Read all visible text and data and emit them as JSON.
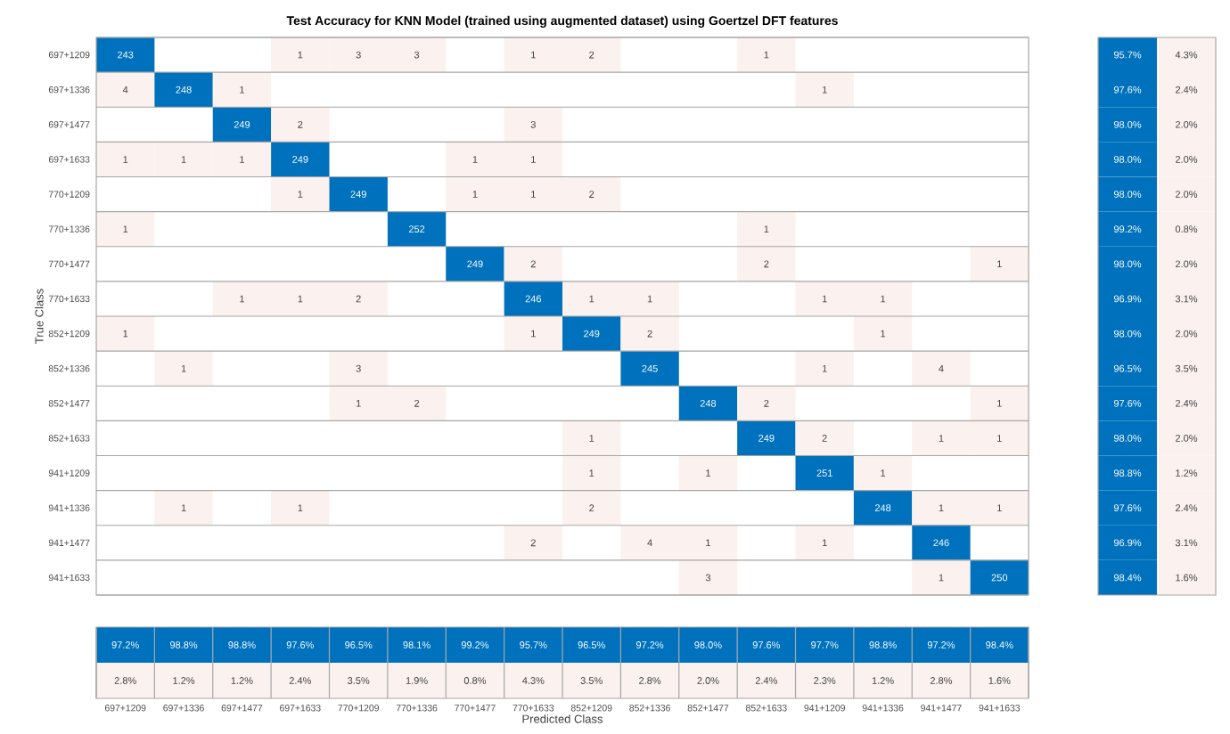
{
  "chart_data": [
    {
      "type": "heatmap",
      "title": "Test Accuracy for KNN Model (trained using augmented dataset) using Goertzel DFT features",
      "ylabel": "True Class",
      "tick_labels": "y",
      "data_labels": true,
      "categories": [
        null,
        null,
        null,
        null,
        null,
        null,
        null,
        null,
        null,
        null,
        null,
        null,
        null,
        null,
        null,
        null
      ],
      "y_categories": [
        "697+1209",
        "697+1336",
        "697+1477",
        "697+1633",
        "770+1209",
        "770+1336",
        "770+1477",
        "770+1633",
        "852+1209",
        "852+1336",
        "852+1477",
        "852+1633",
        "941+1209",
        "941+1336",
        "941+1477",
        "941+1633"
      ],
      "cells": [
        [
          243,
          null,
          null,
          1,
          3,
          3,
          null,
          1,
          2,
          null,
          null,
          1,
          null,
          null,
          null,
          null
        ],
        [
          4,
          248,
          1,
          null,
          null,
          null,
          null,
          null,
          null,
          null,
          null,
          null,
          1,
          null,
          null,
          null
        ],
        [
          null,
          null,
          249,
          2,
          null,
          null,
          null,
          3,
          null,
          null,
          null,
          null,
          null,
          null,
          null,
          null
        ],
        [
          1,
          1,
          1,
          249,
          null,
          null,
          1,
          1,
          null,
          null,
          null,
          null,
          null,
          null,
          null,
          null
        ],
        [
          null,
          null,
          null,
          1,
          249,
          null,
          1,
          1,
          2,
          null,
          null,
          null,
          null,
          null,
          null,
          null
        ],
        [
          1,
          null,
          null,
          null,
          null,
          252,
          null,
          null,
          null,
          null,
          null,
          1,
          null,
          null,
          null,
          null
        ],
        [
          null,
          null,
          null,
          null,
          null,
          null,
          249,
          2,
          null,
          null,
          null,
          2,
          null,
          null,
          null,
          1
        ],
        [
          null,
          null,
          1,
          1,
          2,
          null,
          null,
          246,
          1,
          1,
          null,
          null,
          1,
          1,
          null,
          null
        ],
        [
          1,
          null,
          null,
          null,
          null,
          null,
          null,
          1,
          249,
          2,
          null,
          null,
          null,
          1,
          null,
          null
        ],
        [
          null,
          1,
          null,
          null,
          3,
          null,
          null,
          null,
          null,
          245,
          null,
          null,
          1,
          null,
          4,
          null
        ],
        [
          null,
          null,
          null,
          null,
          1,
          2,
          null,
          null,
          null,
          null,
          248,
          2,
          null,
          null,
          null,
          1
        ],
        [
          null,
          null,
          null,
          null,
          null,
          null,
          null,
          null,
          1,
          null,
          null,
          249,
          2,
          null,
          1,
          1
        ],
        [
          null,
          null,
          null,
          null,
          null,
          null,
          null,
          null,
          1,
          null,
          1,
          null,
          251,
          1,
          null,
          null
        ],
        [
          null,
          1,
          null,
          1,
          null,
          null,
          null,
          null,
          2,
          null,
          null,
          null,
          null,
          248,
          1,
          1
        ],
        [
          null,
          null,
          null,
          null,
          null,
          null,
          null,
          2,
          null,
          4,
          1,
          null,
          1,
          null,
          246,
          null
        ],
        [
          null,
          null,
          null,
          null,
          null,
          null,
          null,
          null,
          null,
          null,
          3,
          null,
          null,
          null,
          1,
          250
        ]
      ]
    },
    {
      "type": "heatmap",
      "tick_labels": false,
      "categories": [
        null,
        null
      ],
      "y_categories": [
        null,
        null,
        null,
        null,
        null,
        null,
        null,
        null,
        null,
        null,
        null,
        null,
        null,
        null,
        null,
        null
      ],
      "cells": [
        [
          95.7,
          4.3
        ],
        [
          97.6,
          2.4
        ],
        [
          98.0,
          2.0
        ],
        [
          98.0,
          2.0
        ],
        [
          98.0,
          2.0
        ],
        [
          99.2,
          0.8
        ],
        [
          98.0,
          2.0
        ],
        [
          96.9,
          3.1
        ],
        [
          98.0,
          2.0
        ],
        [
          96.5,
          3.5
        ],
        [
          97.6,
          2.4
        ],
        [
          98.0,
          2.0
        ],
        [
          98.8,
          1.2
        ],
        [
          97.6,
          2.4
        ],
        [
          96.9,
          3.1
        ],
        [
          98.4,
          1.6
        ]
      ],
      "cell_labels": [
        [
          "95.7%",
          "4.3%"
        ],
        [
          "97.6%",
          "2.4%"
        ],
        [
          "98.0%",
          "2.0%"
        ],
        [
          "98.0%",
          "2.0%"
        ],
        [
          "98.0%",
          "2.0%"
        ],
        [
          "99.2%",
          "0.8%"
        ],
        [
          "98.0%",
          "2.0%"
        ],
        [
          "96.9%",
          "3.1%"
        ],
        [
          "98.0%",
          "2.0%"
        ],
        [
          "96.5%",
          "3.5%"
        ],
        [
          "97.6%",
          "2.4%"
        ],
        [
          "98.0%",
          "2.0%"
        ],
        [
          "98.8%",
          "1.2%"
        ],
        [
          "97.6%",
          "2.4%"
        ],
        [
          "96.9%",
          "3.1%"
        ],
        [
          "98.4%",
          "1.6%"
        ]
      ]
    },
    {
      "type": "heatmap",
      "xlabel": "Predicted Class",
      "tick_labels": "x",
      "categories": [
        "697+1209",
        "697+1336",
        "697+1477",
        "697+1633",
        "770+1209",
        "770+1336",
        "770+1477",
        "770+1633",
        "852+1209",
        "852+1336",
        "852+1477",
        "852+1633",
        "941+1209",
        "941+1336",
        "941+1477",
        "941+1633"
      ],
      "y_categories": [
        null,
        null
      ],
      "cells": [
        [
          97.2,
          98.8,
          98.8,
          97.6,
          96.5,
          98.1,
          99.2,
          95.7,
          96.5,
          97.2,
          98.0,
          97.6,
          97.7,
          98.8,
          97.2,
          98.4
        ],
        [
          2.8,
          1.2,
          1.2,
          2.4,
          3.5,
          1.9,
          0.8,
          4.3,
          3.5,
          2.8,
          2.0,
          2.4,
          2.3,
          1.2,
          2.8,
          1.6
        ]
      ],
      "cell_labels": [
        [
          "97.2%",
          "98.8%",
          "98.8%",
          "97.6%",
          "96.5%",
          "98.1%",
          "99.2%",
          "95.7%",
          "96.5%",
          "97.2%",
          "98.0%",
          "97.6%",
          "97.7%",
          "98.8%",
          "97.2%",
          "98.4%"
        ],
        [
          "2.8%",
          "1.2%",
          "1.2%",
          "2.4%",
          "3.5%",
          "1.9%",
          "0.8%",
          "4.3%",
          "3.5%",
          "2.8%",
          "2.0%",
          "2.4%",
          "2.3%",
          "1.2%",
          "2.8%",
          "1.6%"
        ]
      ]
    }
  ]
}
